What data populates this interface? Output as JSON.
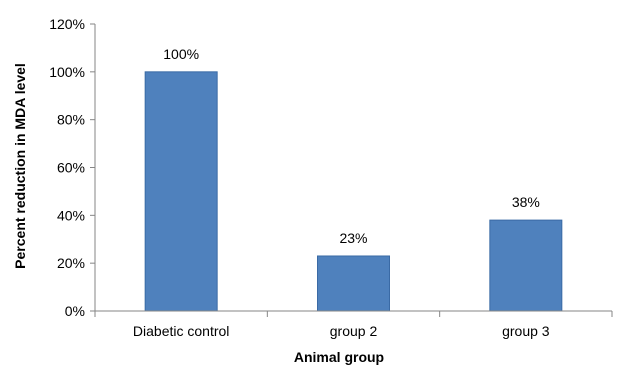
{
  "chart_data": {
    "type": "bar",
    "categories": [
      "Diabetic control",
      "group 2",
      "group 3"
    ],
    "values": [
      100,
      23,
      38
    ],
    "data_labels": [
      "100%",
      "23%",
      "38%"
    ],
    "xlabel": "Animal group",
    "ylabel": "Percent reduction in  MDA level",
    "ylim": [
      0,
      120
    ],
    "yticks": [
      0,
      20,
      40,
      60,
      80,
      100,
      120
    ],
    "ytick_labels": [
      "0%",
      "20%",
      "40%",
      "60%",
      "80%",
      "100%",
      "120%"
    ],
    "grid": false,
    "legend": "none",
    "colors": {
      "bar": "#4f81bd",
      "bar_edge": "#3a6aa5",
      "axis": "#868686"
    }
  }
}
